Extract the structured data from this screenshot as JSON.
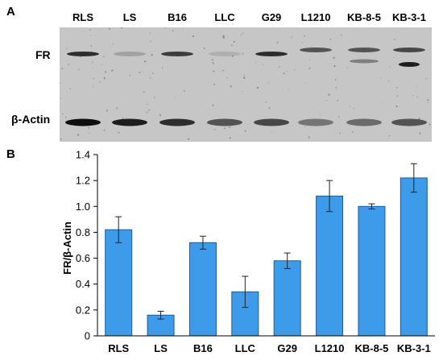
{
  "panel_a": {
    "letter": "A",
    "lanes": [
      "RLS",
      "LS",
      "B16",
      "LLC",
      "G29",
      "L1210",
      "KB-8-5",
      "KB-3-1"
    ],
    "rows": {
      "fr": "FR",
      "actin": "β-Actin"
    },
    "fr_band_intensity": [
      0.9,
      0.35,
      0.85,
      0.25,
      0.9,
      0.75,
      0.75,
      0.8
    ],
    "actin_band_intensity": [
      1.0,
      0.95,
      0.9,
      0.75,
      0.8,
      0.6,
      0.65,
      0.75
    ]
  },
  "panel_b": {
    "letter": "B"
  },
  "chart_data": {
    "type": "bar",
    "categories": [
      "RLS",
      "LS",
      "B16",
      "LLC",
      "G29",
      "L1210",
      "KB-8-5",
      "KB-3-1"
    ],
    "values": [
      0.82,
      0.16,
      0.72,
      0.34,
      0.58,
      1.08,
      1.0,
      1.22
    ],
    "errors": [
      0.1,
      0.03,
      0.05,
      0.12,
      0.06,
      0.12,
      0.02,
      0.11
    ],
    "ylabel": "FR/β-Actin",
    "xlabel": "",
    "ylim": [
      0,
      1.4
    ],
    "yticks": [
      "0",
      "0.2",
      "0.4",
      "0.6",
      "0.8",
      "1.0",
      "1.2",
      "1.4"
    ],
    "grid": false,
    "bar_color": "#3d9be9",
    "bar_edge_color": "#1f5d96"
  }
}
